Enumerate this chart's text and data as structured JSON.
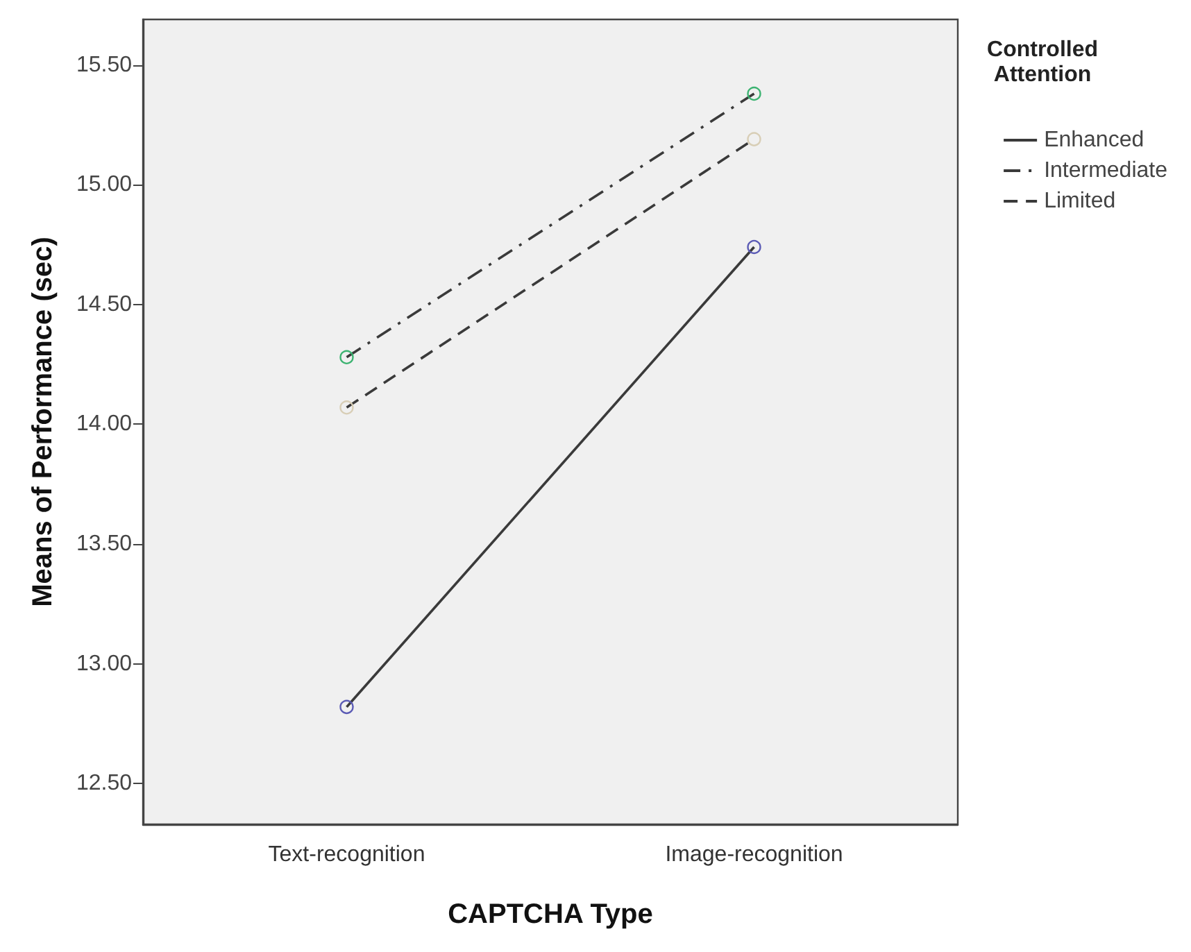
{
  "chart_data": {
    "type": "line",
    "xlabel": "CAPTCHA Type",
    "ylabel": "Means of Performance (sec)",
    "legend_title": "Controlled Attention",
    "categories": [
      "Text-recognition",
      "Image-recognition"
    ],
    "series": [
      {
        "name": "Enhanced",
        "color": "#5b5bb5",
        "line_style": "solid",
        "values": [
          12.82,
          14.74
        ]
      },
      {
        "name": "Intermediate",
        "color": "#3cb371",
        "line_style": "dashdot",
        "values": [
          14.28,
          15.38
        ]
      },
      {
        "name": "Limited",
        "color": "#d8ceb6",
        "line_style": "dashed",
        "values": [
          14.07,
          15.19
        ]
      }
    ],
    "ylim": [
      12.33,
      15.69
    ],
    "yticks": [
      {
        "value": 12.5,
        "label": "12.50"
      },
      {
        "value": 13,
        "label": "13.00"
      },
      {
        "value": 13.5,
        "label": "13.50"
      },
      {
        "value": 14,
        "label": "14.00"
      },
      {
        "value": 14.5,
        "label": "14.50"
      },
      {
        "value": 15,
        "label": "15.00"
      },
      {
        "value": 15.5,
        "label": "15.50"
      }
    ],
    "grid": false,
    "legend": "right",
    "marker": "circle"
  }
}
